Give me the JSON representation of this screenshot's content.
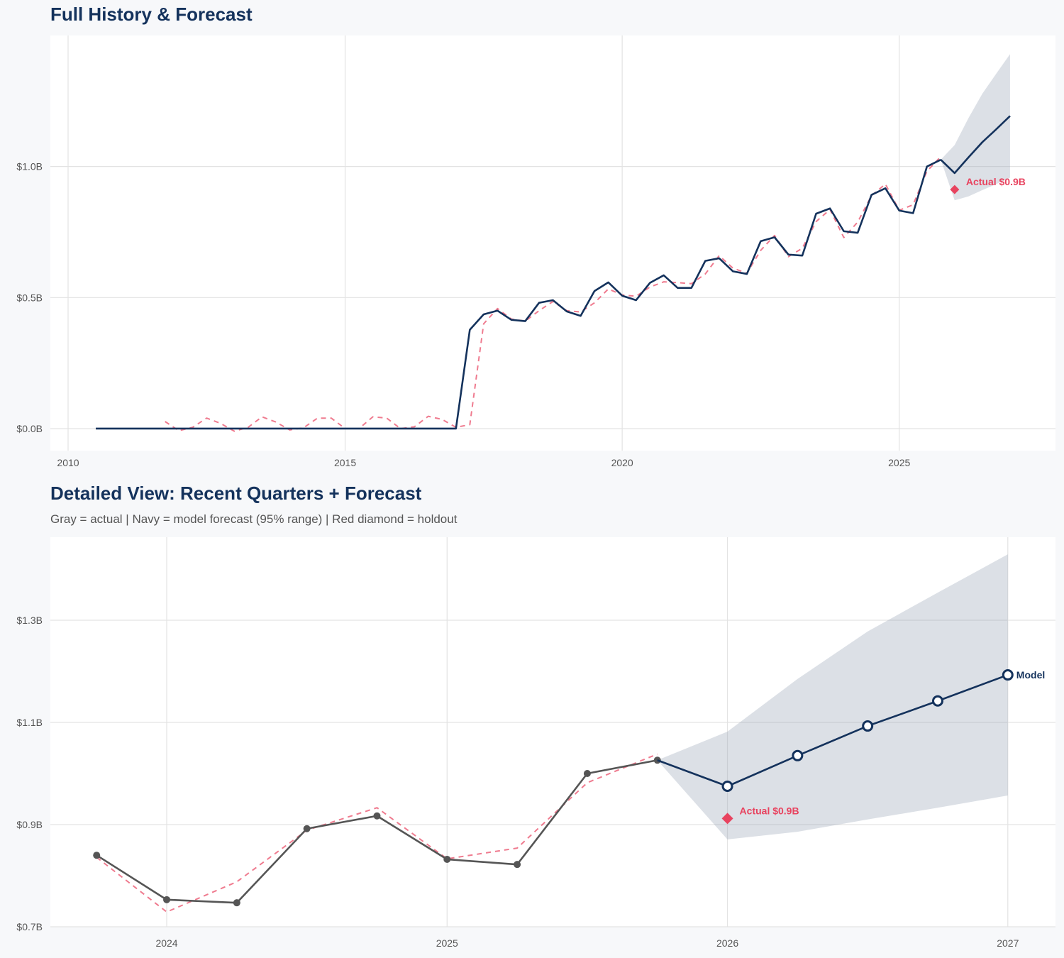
{
  "colors": {
    "navy": "#14325c",
    "red": "#e8435f",
    "gray": "#555555",
    "band": "#dbe0e6",
    "grid": "#e3e3e3",
    "background": "#f7f8fa"
  },
  "chart_data": [
    {
      "type": "line",
      "title": "Full History & Forecast",
      "xlim": [
        2009.68,
        2027.82
      ],
      "ylim": [
        -0.084,
        1.5
      ],
      "x_ticks": [
        2010,
        2015,
        2020,
        2025
      ],
      "x_tick_labels": [
        "2010",
        "2015",
        "2020",
        "2025"
      ],
      "y_ticks": [
        0,
        0.5,
        1.0
      ],
      "y_tick_labels": [
        "$0.0B",
        "$0.5B",
        "$1.0B"
      ],
      "grid": true,
      "series": [
        {
          "role": "fitted",
          "style": "dashed",
          "color": "#e8435f",
          "x": [
            2011.75,
            2012,
            2012.25,
            2012.5,
            2012.75,
            2013,
            2013.25,
            2013.5,
            2013.75,
            2014,
            2014.25,
            2014.5,
            2014.75,
            2015,
            2015.25,
            2015.5,
            2015.75,
            2016,
            2016.25,
            2016.5,
            2016.75,
            2017,
            2017.25,
            2017.5,
            2017.75,
            2018,
            2018.25,
            2018.5,
            2018.75,
            2019,
            2019.25,
            2019.5,
            2019.75,
            2020,
            2020.25,
            2020.5,
            2020.75,
            2021,
            2021.25,
            2021.5,
            2021.75,
            2022,
            2022.25,
            2022.5,
            2022.75,
            2023,
            2023.25,
            2023.5,
            2023.75,
            2024,
            2024.25,
            2024.5,
            2024.75,
            2025,
            2025.25,
            2025.5,
            2025.75
          ],
          "y": [
            0.027,
            -0.008,
            0.005,
            0.04,
            0.02,
            -0.01,
            0.005,
            0.045,
            0.025,
            -0.005,
            0.003,
            0.04,
            0.04,
            0,
            0,
            0.045,
            0.04,
            0,
            0.007,
            0.047,
            0.035,
            0.005,
            0.015,
            0.4,
            0.458,
            0.418,
            0.41,
            0.45,
            0.485,
            0.45,
            0.445,
            0.48,
            0.533,
            0.51,
            0.505,
            0.54,
            0.56,
            0.557,
            0.553,
            0.59,
            0.66,
            0.612,
            0.593,
            0.68,
            0.737,
            0.656,
            0.688,
            0.79,
            0.836,
            0.729,
            0.788,
            0.889,
            0.933,
            0.833,
            0.854,
            0.982,
            1.038
          ]
        },
        {
          "role": "actual",
          "style": "solid",
          "color": "#14325c",
          "x": [
            2010.5,
            2010.75,
            2011,
            2011.25,
            2011.5,
            2011.75,
            2012,
            2012.25,
            2012.5,
            2012.75,
            2013,
            2013.25,
            2013.5,
            2013.75,
            2014,
            2014.25,
            2014.5,
            2014.75,
            2015,
            2015.25,
            2015.5,
            2015.75,
            2016,
            2016.25,
            2016.5,
            2016.75,
            2017,
            2017.25,
            2017.5,
            2017.75,
            2018,
            2018.25,
            2018.5,
            2018.75,
            2019,
            2019.25,
            2019.5,
            2019.75,
            2020,
            2020.25,
            2020.5,
            2020.75,
            2021,
            2021.25,
            2021.5,
            2021.75,
            2022,
            2022.25,
            2022.5,
            2022.75,
            2023,
            2023.25,
            2023.5,
            2023.75,
            2024,
            2024.25,
            2024.5,
            2024.75,
            2025,
            2025.25,
            2025.5,
            2025.75
          ],
          "y": [
            0,
            0,
            0,
            0,
            0,
            0,
            0,
            0,
            0,
            0,
            0,
            0,
            0,
            0,
            0,
            0,
            0,
            0,
            0,
            0,
            0,
            0,
            0,
            0,
            0,
            0,
            0,
            0.377,
            0.436,
            0.45,
            0.415,
            0.41,
            0.48,
            0.49,
            0.447,
            0.43,
            0.525,
            0.558,
            0.507,
            0.49,
            0.556,
            0.585,
            0.537,
            0.537,
            0.64,
            0.65,
            0.6,
            0.59,
            0.715,
            0.73,
            0.664,
            0.66,
            0.82,
            0.84,
            0.753,
            0.747,
            0.892,
            0.917,
            0.832,
            0.822,
            1.0,
            1.026
          ]
        },
        {
          "role": "forecast",
          "style": "solid",
          "color": "#14325c",
          "x": [
            2025.75,
            2026,
            2026.25,
            2026.5,
            2026.75,
            2027
          ],
          "y": [
            1.026,
            0.975,
            1.035,
            1.093,
            1.142,
            1.193
          ]
        }
      ],
      "band": {
        "x": [
          2025.75,
          2026,
          2026.25,
          2026.5,
          2026.75,
          2027
        ],
        "lower": [
          1.026,
          0.871,
          0.886,
          0.91,
          0.933,
          0.957
        ],
        "upper": [
          1.026,
          1.082,
          1.185,
          1.278,
          1.354,
          1.429
        ]
      },
      "holdout": {
        "x": 2026.0,
        "y": 0.912,
        "label": "Actual $0.9B"
      }
    },
    {
      "type": "line",
      "title": "Detailed View: Recent Quarters + Forecast",
      "subtitle": "Gray = actual  |  Navy = model forecast (95% range)  |  Red diamond = holdout",
      "xlim": [
        2023.585,
        2027.17
      ],
      "ylim": [
        0.7,
        1.4625
      ],
      "x_ticks": [
        2024,
        2025,
        2026,
        2027
      ],
      "x_tick_labels": [
        "2024",
        "2025",
        "2026",
        "2027"
      ],
      "y_ticks": [
        0.7,
        0.9,
        1.1,
        1.3
      ],
      "y_tick_labels": [
        "$0.7B",
        "$0.9B",
        "$1.1B",
        "$1.3B"
      ],
      "grid": true,
      "series": [
        {
          "role": "fitted",
          "style": "dashed",
          "color": "#e8435f",
          "x": [
            2023.75,
            2024,
            2024.25,
            2024.5,
            2024.75,
            2025,
            2025.25,
            2025.5,
            2025.75
          ],
          "y": [
            0.836,
            0.729,
            0.788,
            0.889,
            0.933,
            0.833,
            0.854,
            0.982,
            1.038
          ]
        },
        {
          "role": "actual",
          "style": "solid-markers",
          "color": "#555555",
          "x": [
            2023.75,
            2024,
            2024.25,
            2024.5,
            2024.75,
            2025,
            2025.25,
            2025.5,
            2025.75
          ],
          "y": [
            0.84,
            0.753,
            0.747,
            0.892,
            0.917,
            0.832,
            0.822,
            1.0,
            1.026
          ]
        },
        {
          "role": "forecast",
          "style": "hollow-markers",
          "color": "#14325c",
          "label": "Model",
          "x": [
            2025.75,
            2026,
            2026.25,
            2026.5,
            2026.75,
            2027
          ],
          "y": [
            1.026,
            0.975,
            1.035,
            1.093,
            1.142,
            1.193
          ]
        }
      ],
      "band": {
        "x": [
          2025.75,
          2026,
          2026.25,
          2026.5,
          2026.75,
          2027
        ],
        "lower": [
          1.026,
          0.871,
          0.886,
          0.91,
          0.933,
          0.957
        ],
        "upper": [
          1.026,
          1.082,
          1.185,
          1.278,
          1.354,
          1.429
        ]
      },
      "holdout": {
        "x": 2026.0,
        "y": 0.912,
        "label": "Actual $0.9B"
      }
    }
  ]
}
